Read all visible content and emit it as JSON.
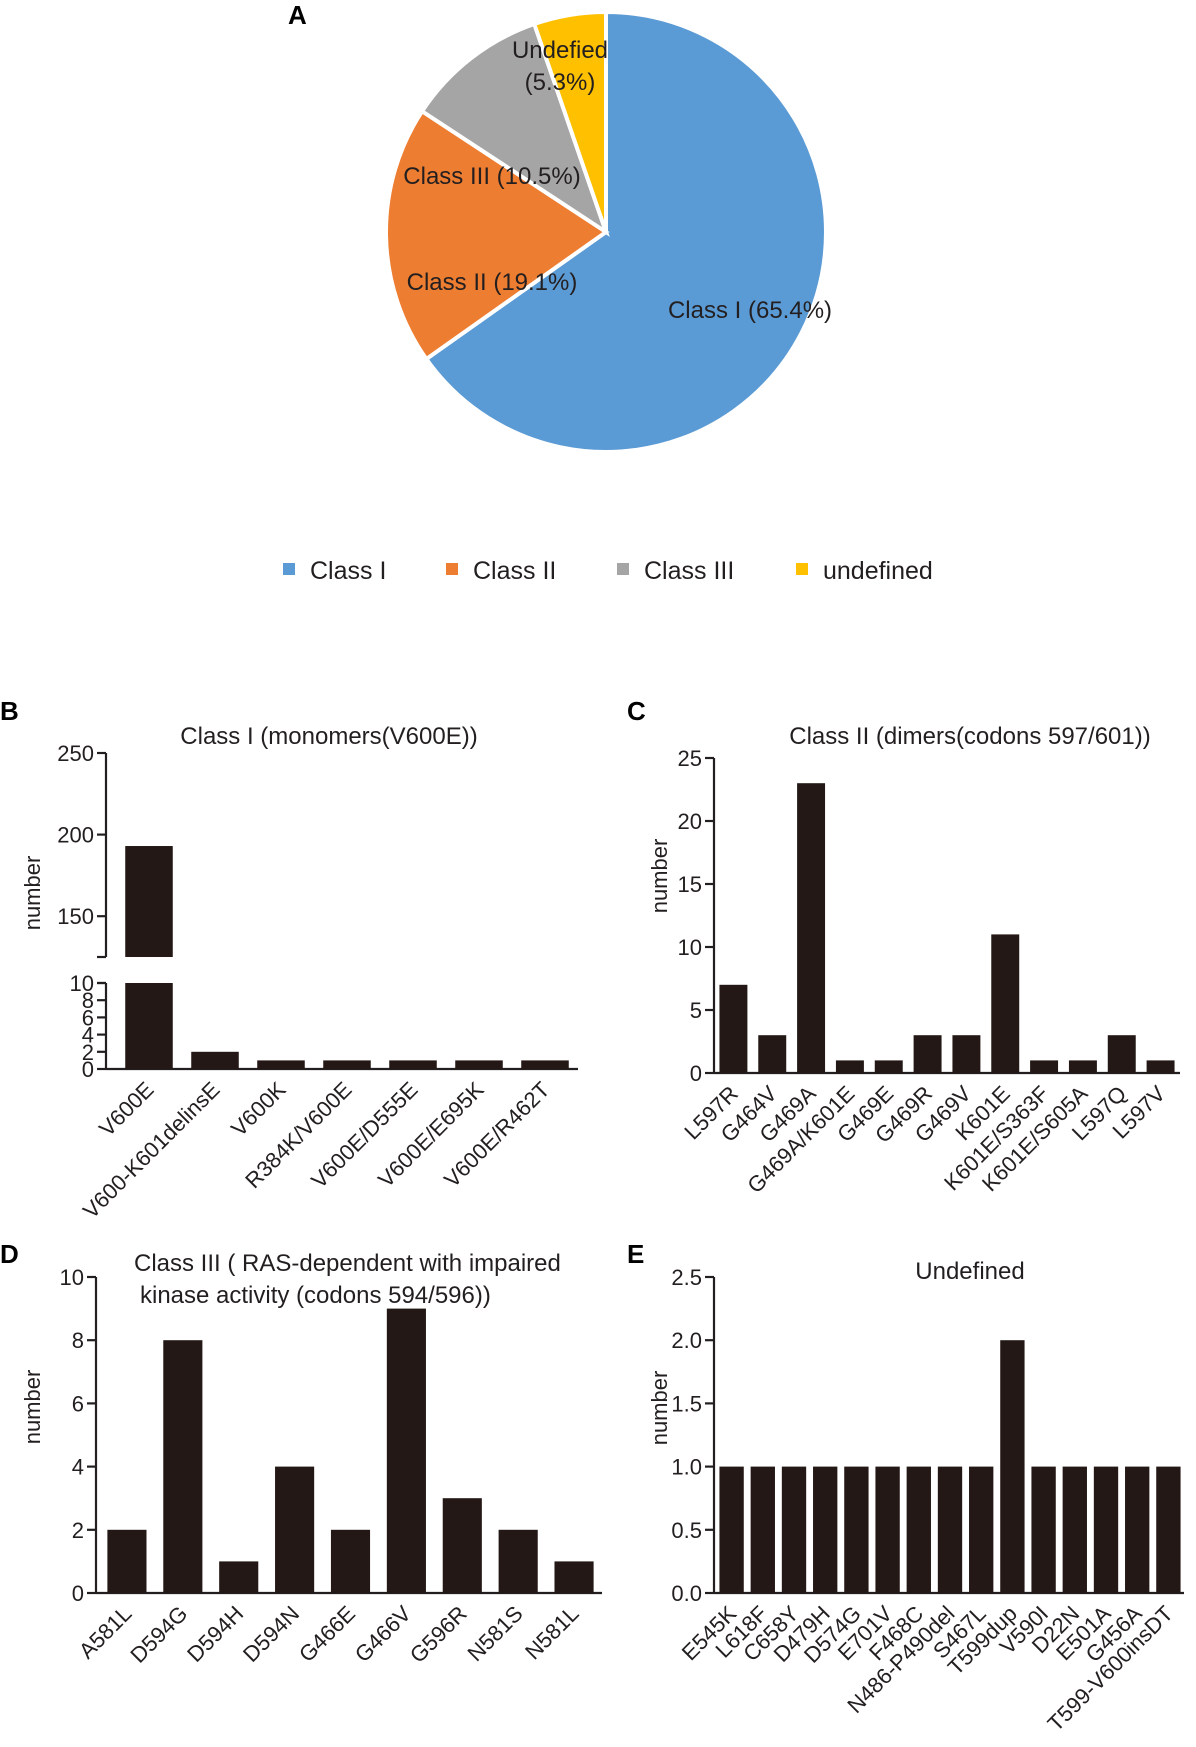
{
  "colors": {
    "class1": "#5b9bd5",
    "class2": "#ed7d31",
    "class3": "#a5a5a5",
    "undefined": "#ffc000",
    "bar": "#231815"
  },
  "chart_data": [
    {
      "panel": "A",
      "type": "pie",
      "slices": [
        {
          "label": "Class I (65.4%)",
          "value": 65.4,
          "color_key": "class1"
        },
        {
          "label": "Class II (19.1%)",
          "value": 19.1,
          "color_key": "class2"
        },
        {
          "label": "Class III (10.5%)",
          "value": 10.5,
          "color_key": "class3"
        },
        {
          "label": "Undefied (5.3%)",
          "label_lines": [
            "Undefied",
            "(5.3%)"
          ],
          "value": 5.3,
          "color_key": "undefined"
        }
      ],
      "legend": [
        "Class I",
        "Class II",
        "Class III",
        "undefined"
      ]
    },
    {
      "panel": "B",
      "type": "bar",
      "title": "Class I (monomers(V600E))",
      "ylabel": "number",
      "categories": [
        "V600E",
        "V600-K601delinsE",
        "V600K",
        "R384K/V600E",
        "V600E/D555E",
        "V600E/E695K",
        "V600E/R462T"
      ],
      "values": [
        193,
        2,
        1,
        1,
        1,
        1,
        1
      ],
      "axis_break": {
        "lower_range": [
          0,
          10
        ],
        "upper_range": [
          125,
          250
        ]
      },
      "lower_ticks": [
        0,
        2,
        4,
        6,
        8,
        10
      ],
      "upper_ticks": [
        150,
        200,
        250
      ]
    },
    {
      "panel": "C",
      "type": "bar",
      "title": "Class II (dimers(codons 597/601))",
      "ylabel": "number",
      "categories": [
        "L597R",
        "G464V",
        "G469A",
        "G469A/K601E",
        "G469E",
        "G469R",
        "G469V",
        "K601E",
        "K601E/S363F",
        "K601E/S605A",
        "L597Q",
        "L597V"
      ],
      "values": [
        7,
        3,
        23,
        1,
        1,
        3,
        3,
        11,
        1,
        1,
        3,
        1
      ],
      "ylim": [
        0,
        25
      ],
      "ticks": [
        0,
        5,
        10,
        15,
        20,
        25
      ]
    },
    {
      "panel": "D",
      "type": "bar",
      "title_lines": [
        "Class III ( RAS-dependent with impaired",
        "kinase activity (codons 594/596))"
      ],
      "ylabel": "number",
      "categories": [
        "A581L",
        "D594G",
        "D594H",
        "D594N",
        "G466E",
        "G466V",
        "G596R",
        "N581S",
        "N581L"
      ],
      "values": [
        2,
        8,
        1,
        4,
        2,
        9,
        3,
        2,
        1
      ],
      "ylim": [
        0,
        10
      ],
      "ticks": [
        0,
        2,
        4,
        6,
        8,
        10
      ]
    },
    {
      "panel": "E",
      "type": "bar",
      "title": "Undefined",
      "ylabel": "number",
      "categories": [
        "E545K",
        "L618F",
        "C658Y",
        "D479H",
        "D574G",
        "E701V",
        "F468C",
        "N486-P490del",
        "S467L",
        "T599dup",
        "V590I",
        "D22N",
        "E501A",
        "G456A",
        "T599-V600insDT"
      ],
      "values": [
        1,
        1,
        1,
        1,
        1,
        1,
        1,
        1,
        1,
        2,
        1,
        1,
        1,
        1,
        1
      ],
      "ylim": [
        0,
        2.5
      ],
      "ticks": [
        "0.0",
        "0.5",
        "1.0",
        "1.5",
        "2.0",
        "2.5"
      ]
    }
  ]
}
